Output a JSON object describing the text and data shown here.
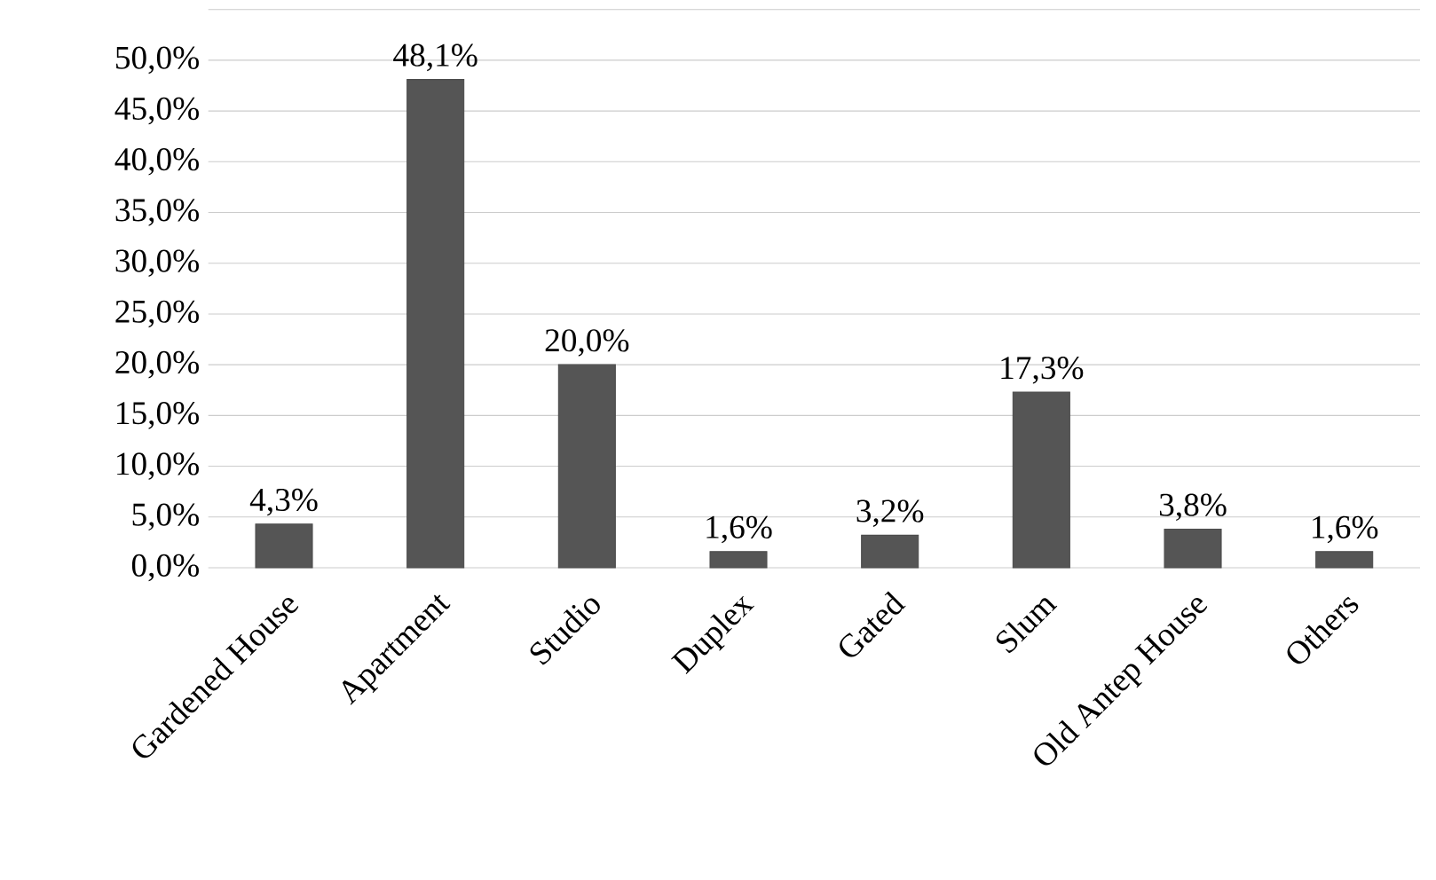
{
  "chart_data": {
    "type": "bar",
    "categories": [
      "Gardened House",
      "Apartment",
      "Studio",
      "Duplex",
      "Gated",
      "Slum",
      "Old Antep House",
      "Others"
    ],
    "values": [
      4.3,
      48.1,
      20.0,
      1.6,
      3.2,
      17.3,
      3.8,
      1.6
    ],
    "value_labels": [
      "4,3%",
      "48,1%",
      "20,0%",
      "1,6%",
      "3,2%",
      "17,3%",
      "3,8%",
      "1,6%"
    ],
    "color": "#555555",
    "ylim": [
      0,
      55
    ],
    "yticks": [
      {
        "value": 0,
        "label": "0,0%"
      },
      {
        "value": 5,
        "label": "5,0%"
      },
      {
        "value": 10,
        "label": "10,0%"
      },
      {
        "value": 15,
        "label": "15,0%"
      },
      {
        "value": 20,
        "label": "20,0%"
      },
      {
        "value": 25,
        "label": "25,0%"
      },
      {
        "value": 30,
        "label": "30,0%"
      },
      {
        "value": 35,
        "label": "35,0%"
      },
      {
        "value": 40,
        "label": "40,0%"
      },
      {
        "value": 45,
        "label": "45,0%"
      },
      {
        "value": 50,
        "label": "50,0%"
      },
      {
        "value": 55,
        "label": null
      }
    ],
    "grid": "y"
  }
}
